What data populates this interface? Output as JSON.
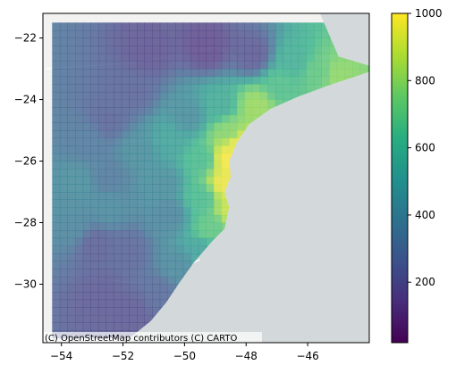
{
  "map": {
    "attribution": "(C) OpenStreetMap contributors (C) CARTO",
    "basemap": "CartoDB Positron",
    "colors": {
      "land": "#f2f2f0",
      "sea": "#d3d9da",
      "road": "#ffffff",
      "border": "#c8c8c8"
    },
    "alpha": 0.75
  },
  "chart_data": {
    "type": "heatmap",
    "title": "",
    "xlabel": "",
    "ylabel": "",
    "xlim": [
      -54.6,
      -44.0
    ],
    "ylim": [
      -31.9,
      -21.2
    ],
    "x_ticks": [
      -54,
      -52,
      -50,
      -48,
      -46
    ],
    "y_ticks": [
      -22,
      -24,
      -26,
      -28,
      -30
    ],
    "x_tick_labels": [
      "−54",
      "−52",
      "−50",
      "−48",
      "−46"
    ],
    "y_tick_labels": [
      "−22",
      "−24",
      "−26",
      "−28",
      "−30"
    ],
    "colormap": "viridis",
    "colorbar": {
      "range": [
        20,
        1000
      ],
      "ticks": [
        200,
        400,
        600,
        800,
        1000
      ],
      "tick_labels": [
        "200",
        "400",
        "600",
        "800",
        "1000"
      ]
    },
    "cell_size_deg": 0.25,
    "features": [
      {
        "x": -53.6,
        "y": -26.6,
        "value": 420
      },
      {
        "x": -53.3,
        "y": -25.2,
        "value": 330
      },
      {
        "x": -52.6,
        "y": -24.5,
        "value": 240
      },
      {
        "x": -51.8,
        "y": -23.6,
        "value": 240
      },
      {
        "x": -51.3,
        "y": -22.3,
        "value": 180
      },
      {
        "x": -49.4,
        "y": -22.2,
        "value": 150
      },
      {
        "x": -47.9,
        "y": -22.4,
        "value": 200
      },
      {
        "x": -46.6,
        "y": -22.6,
        "value": 580
      },
      {
        "x": -45.8,
        "y": -23.0,
        "value": 700
      },
      {
        "x": -45.2,
        "y": -23.1,
        "value": 800
      },
      {
        "x": -47.0,
        "y": -23.4,
        "value": 660
      },
      {
        "x": -47.8,
        "y": -24.1,
        "value": 820
      },
      {
        "x": -49.0,
        "y": -24.1,
        "value": 560
      },
      {
        "x": -50.0,
        "y": -24.4,
        "value": 420
      },
      {
        "x": -48.7,
        "y": -24.9,
        "value": 780
      },
      {
        "x": -48.4,
        "y": -25.3,
        "value": 960
      },
      {
        "x": -48.7,
        "y": -25.8,
        "value": 990
      },
      {
        "x": -48.8,
        "y": -26.6,
        "value": 970
      },
      {
        "x": -48.6,
        "y": -27.4,
        "value": 900
      },
      {
        "x": -49.6,
        "y": -25.8,
        "value": 640
      },
      {
        "x": -50.6,
        "y": -25.2,
        "value": 520
      },
      {
        "x": -51.6,
        "y": -25.5,
        "value": 420
      },
      {
        "x": -50.8,
        "y": -26.6,
        "value": 420
      },
      {
        "x": -49.6,
        "y": -27.1,
        "value": 640
      },
      {
        "x": -50.6,
        "y": -27.6,
        "value": 380
      },
      {
        "x": -49.3,
        "y": -28.1,
        "value": 700
      },
      {
        "x": -49.6,
        "y": -28.8,
        "value": 520
      },
      {
        "x": -50.3,
        "y": -29.3,
        "value": 400
      },
      {
        "x": -52.0,
        "y": -28.8,
        "value": 240
      },
      {
        "x": -53.0,
        "y": -28.6,
        "value": 220
      },
      {
        "x": -52.8,
        "y": -30.3,
        "value": 200
      },
      {
        "x": -51.8,
        "y": -30.8,
        "value": 200
      },
      {
        "x": -51.0,
        "y": -30.2,
        "value": 260
      },
      {
        "x": -53.8,
        "y": -28.0,
        "value": 380
      },
      {
        "x": -54.0,
        "y": -27.4,
        "value": 400
      },
      {
        "x": -52.6,
        "y": -27.4,
        "value": 400
      },
      {
        "x": -52.6,
        "y": -26.4,
        "value": 330
      }
    ]
  }
}
